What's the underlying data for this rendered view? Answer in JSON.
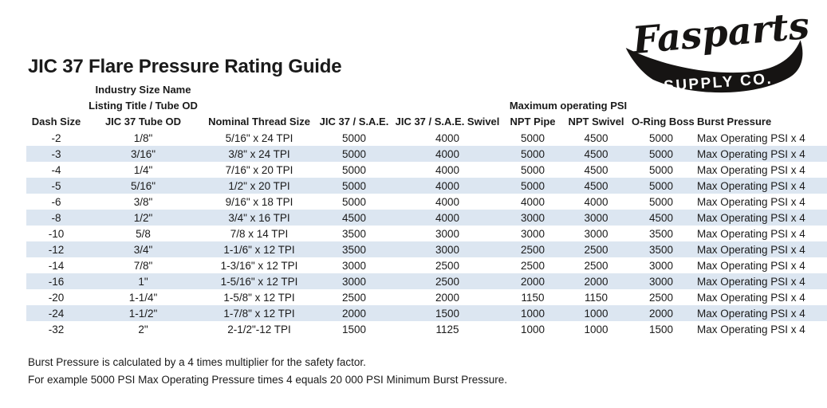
{
  "page": {
    "title": "JIC 37 Flare Pressure Rating Guide"
  },
  "logo": {
    "brand": "Fasparts",
    "subtitle": "SUPPLY CO."
  },
  "table": {
    "super_headers": {
      "industry_size_name": "Industry Size Name",
      "listing_title": "Listing Title / Tube OD",
      "max_operating_psi": "Maximum operating PSI"
    },
    "columns": [
      "Dash Size",
      "JIC 37 Tube OD",
      "Nominal Thread Size",
      "JIC 37 / S.A.E.",
      "JIC 37 / S.A.E. Swivel",
      "NPT Pipe",
      "NPT Swivel",
      "O-Ring Boss",
      "Burst Pressure"
    ],
    "rows": [
      [
        "-2",
        "1/8\"",
        "5/16\" x 24 TPI",
        "5000",
        "4000",
        "5000",
        "4500",
        "5000",
        "Max Operating PSI x 4"
      ],
      [
        "-3",
        "3/16\"",
        "3/8\" x 24 TPI",
        "5000",
        "4000",
        "5000",
        "4500",
        "5000",
        "Max Operating PSI x 4"
      ],
      [
        "-4",
        "1/4\"",
        "7/16\" x 20 TPI",
        "5000",
        "4000",
        "5000",
        "4500",
        "5000",
        "Max Operating PSI x 4"
      ],
      [
        "-5",
        "5/16\"",
        "1/2\" x 20 TPI",
        "5000",
        "4000",
        "5000",
        "4500",
        "5000",
        "Max Operating PSI x 4"
      ],
      [
        "-6",
        "3/8\"",
        "9/16\" x 18 TPI",
        "5000",
        "4000",
        "4000",
        "4000",
        "5000",
        "Max Operating PSI x 4"
      ],
      [
        "-8",
        "1/2\"",
        "3/4\" x 16 TPI",
        "4500",
        "4000",
        "3000",
        "3000",
        "4500",
        "Max Operating PSI x 4"
      ],
      [
        "-10",
        "5/8",
        "7/8 x 14 TPI",
        "3500",
        "3000",
        "3000",
        "3000",
        "3500",
        "Max Operating PSI x 4"
      ],
      [
        "-12",
        "3/4\"",
        "1-1/6\" x 12 TPI",
        "3500",
        "3000",
        "2500",
        "2500",
        "3500",
        "Max Operating PSI x 4"
      ],
      [
        "-14",
        "7/8\"",
        "1-3/16\" x 12 TPI",
        "3000",
        "2500",
        "2500",
        "2500",
        "3000",
        "Max Operating PSI x 4"
      ],
      [
        "-16",
        "1\"",
        "1-5/16\" x 12 TPI",
        "3000",
        "2500",
        "2000",
        "2000",
        "3000",
        "Max Operating PSI x 4"
      ],
      [
        "-20",
        "1-1/4\"",
        "1-5/8\" x 12 TPI",
        "2500",
        "2000",
        "1150",
        "1150",
        "2500",
        "Max Operating PSI x 4"
      ],
      [
        "-24",
        "1-1/2\"",
        "1-7/8\" x 12 TPI",
        "2000",
        "1500",
        "1000",
        "1000",
        "2000",
        "Max Operating PSI x 4"
      ],
      [
        "-32",
        "2\"",
        "2-1/2\"-12 TPI",
        "1500",
        "1125",
        "1000",
        "1000",
        "1500",
        "Max Operating PSI x 4"
      ]
    ]
  },
  "footer": {
    "line1": "Burst Pressure is calculated by a 4 times multiplier for the safety factor.",
    "line2": "For example 5000 PSI Max Operating Pressure times 4 equals 20 000 PSI Minimum Burst Pressure."
  },
  "colors": {
    "row_shade": "#dce6f1",
    "text": "#1a1a1a",
    "logo_ink": "#161413"
  }
}
